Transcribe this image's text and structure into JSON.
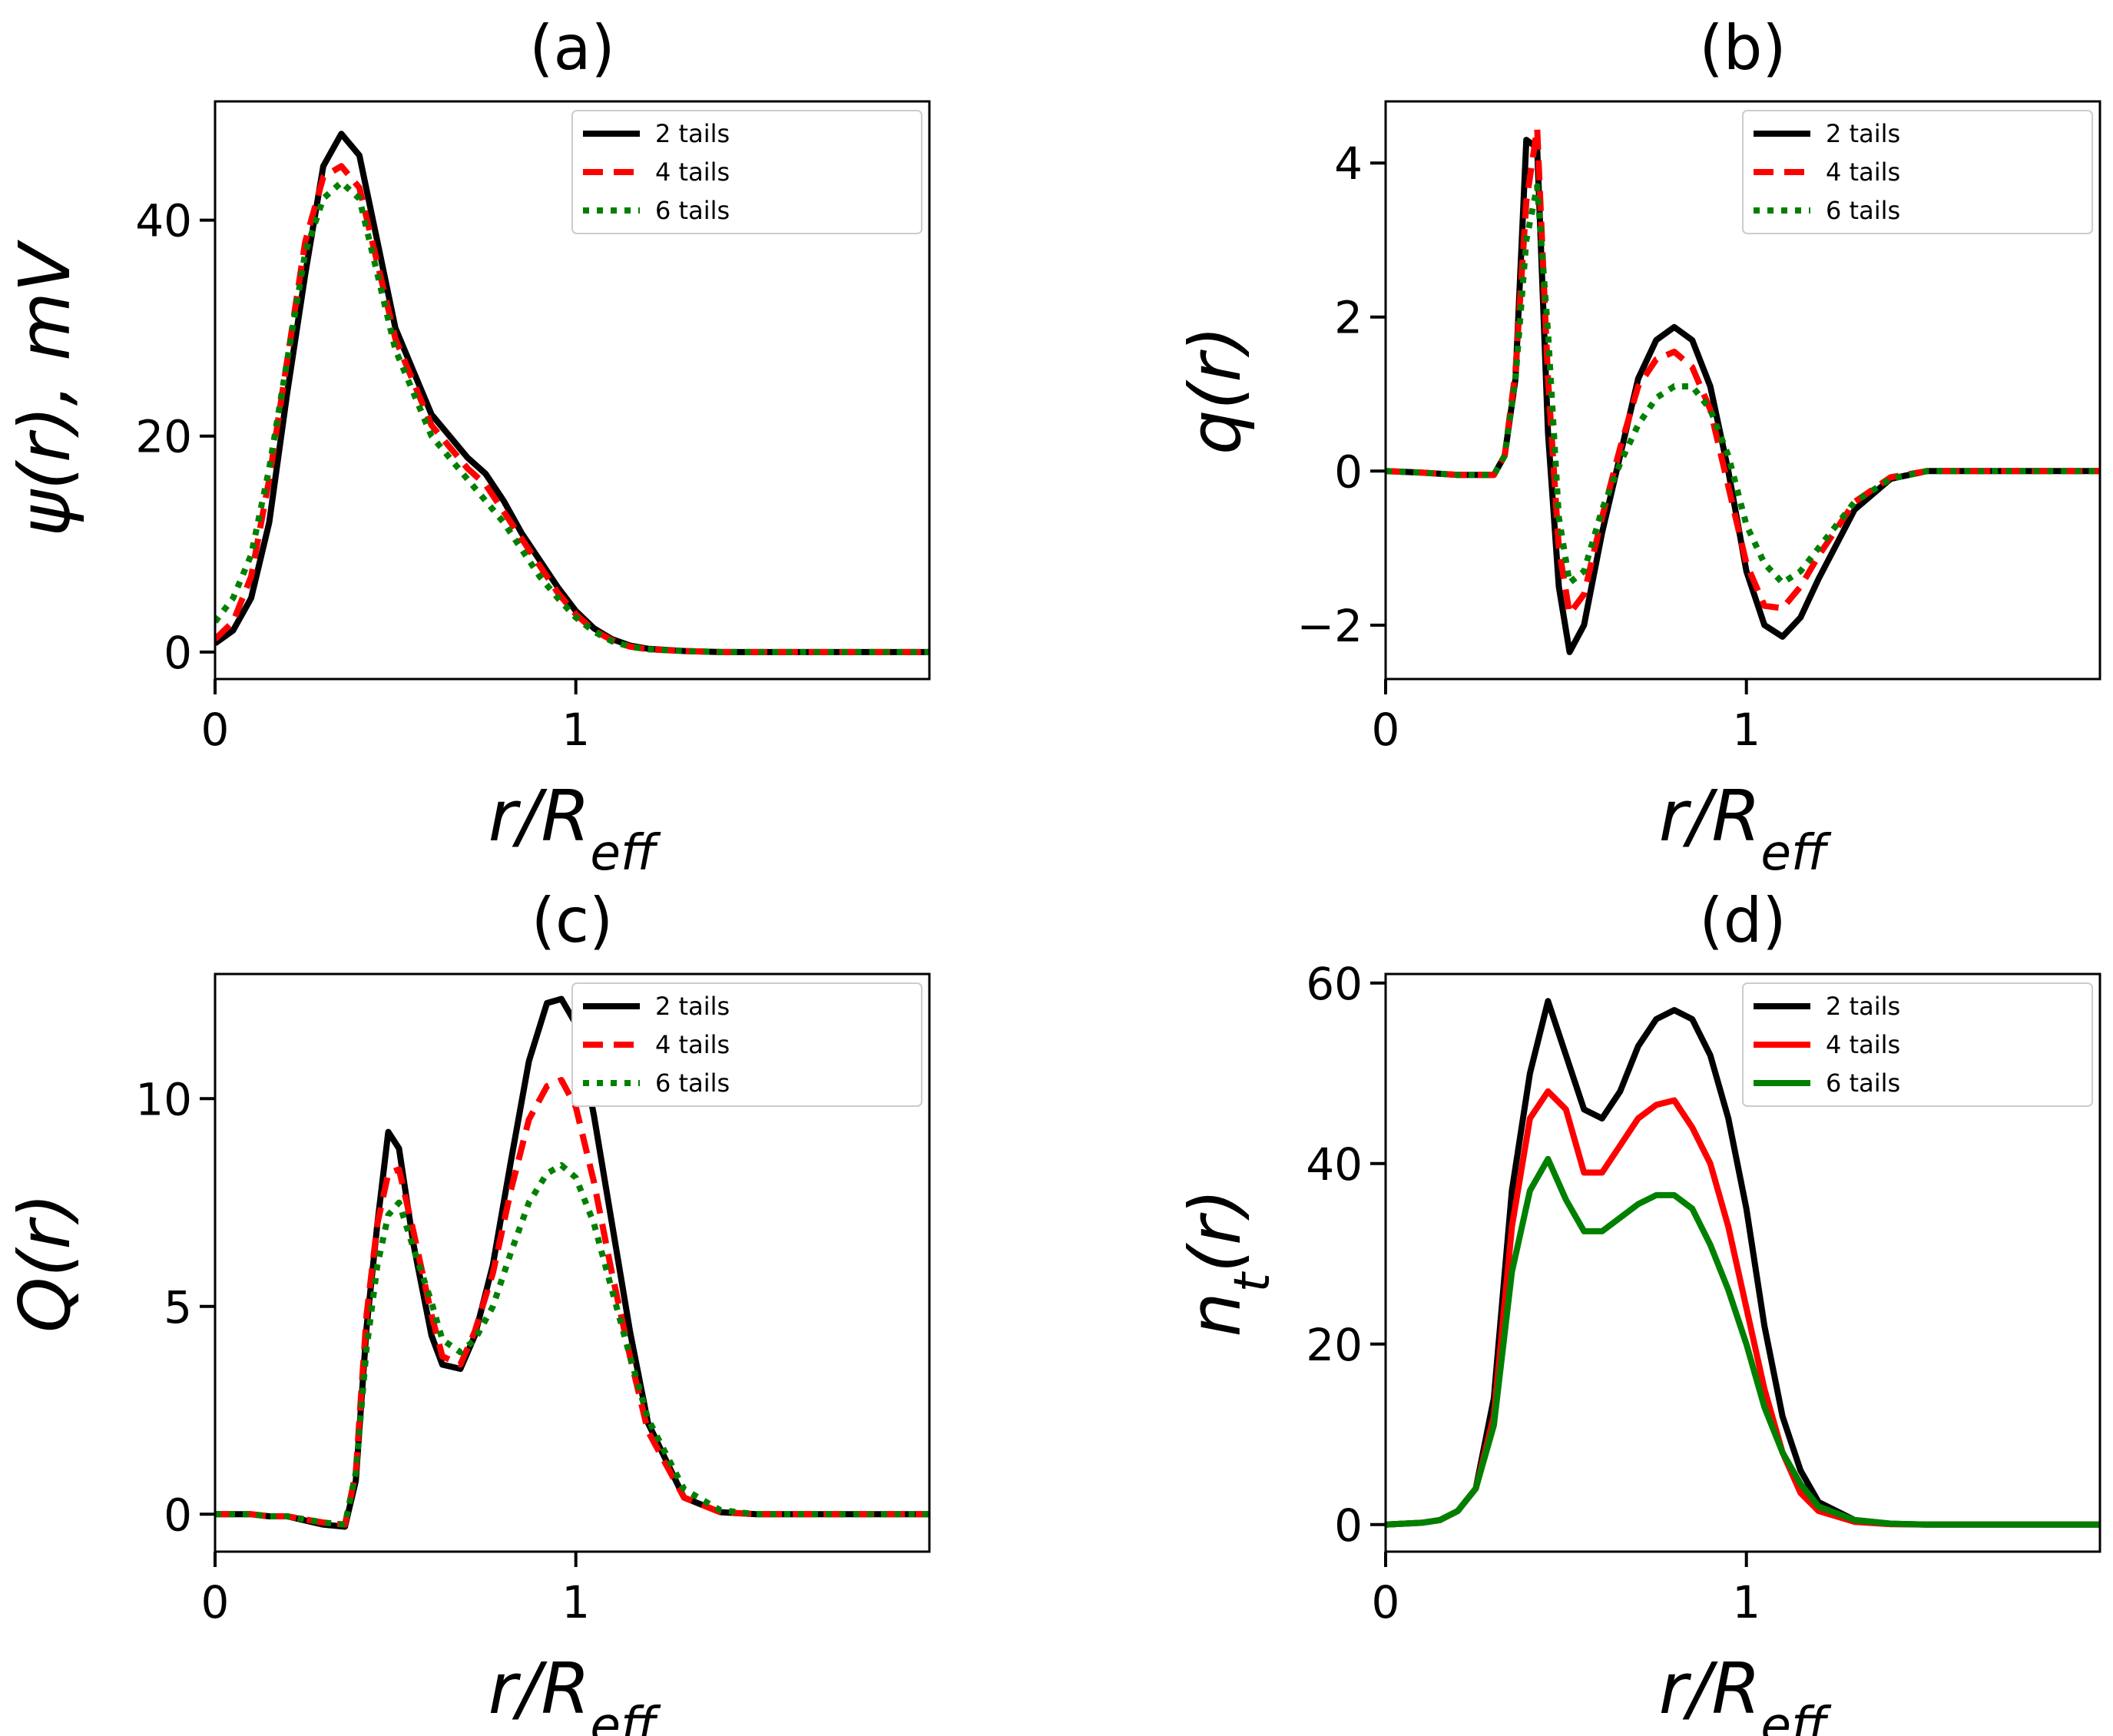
{
  "figure": {
    "panels": [
      "(a)",
      "(b)",
      "(c)",
      "(d)"
    ]
  },
  "chart_data": [
    {
      "type": "line",
      "title": "(a)",
      "xlabel": "r/R_eff",
      "ylabel": "ψ(r), mV",
      "xlim": [
        0,
        1.98
      ],
      "ylim": [
        -2.5,
        51
      ],
      "xticks": [
        0,
        1
      ],
      "yticks": [
        0,
        20,
        40
      ],
      "legend_position": "top-right",
      "series": [
        {
          "name": "2 tails",
          "color": "#000000",
          "dash": "solid",
          "x": [
            0,
            0.05,
            0.1,
            0.15,
            0.2,
            0.25,
            0.3,
            0.35,
            0.4,
            0.45,
            0.5,
            0.55,
            0.6,
            0.65,
            0.7,
            0.75,
            0.8,
            0.85,
            0.9,
            0.95,
            1.0,
            1.05,
            1.1,
            1.15,
            1.2,
            1.3,
            1.4,
            1.5,
            1.7,
            1.98
          ],
          "y": [
            0.8,
            2,
            5,
            12,
            24,
            35,
            45,
            48,
            46,
            38,
            30,
            26,
            22,
            20,
            18,
            16.5,
            14,
            11,
            8.5,
            6,
            3.8,
            2.2,
            1.2,
            0.6,
            0.3,
            0.1,
            0,
            0,
            0,
            0
          ]
        },
        {
          "name": "4 tails",
          "color": "#ff0000",
          "dash": "dashed",
          "x": [
            0,
            0.05,
            0.1,
            0.15,
            0.2,
            0.25,
            0.3,
            0.35,
            0.4,
            0.45,
            0.5,
            0.55,
            0.6,
            0.65,
            0.7,
            0.75,
            0.8,
            0.85,
            0.9,
            0.95,
            1.0,
            1.05,
            1.1,
            1.15,
            1.2,
            1.3,
            1.4,
            1.5,
            1.7,
            1.98
          ],
          "y": [
            1.2,
            2.8,
            7,
            16,
            27,
            38,
            44,
            45,
            43,
            36,
            29,
            25,
            21,
            19,
            17,
            15.5,
            13,
            10.5,
            8,
            5.5,
            3.5,
            2,
            1.1,
            0.5,
            0.25,
            0.1,
            0,
            0,
            0,
            0
          ]
        },
        {
          "name": "6 tails",
          "color": "#008000",
          "dash": "dotted",
          "x": [
            0,
            0.05,
            0.1,
            0.15,
            0.2,
            0.25,
            0.3,
            0.35,
            0.4,
            0.45,
            0.5,
            0.55,
            0.6,
            0.65,
            0.7,
            0.75,
            0.8,
            0.85,
            0.9,
            0.95,
            1.0,
            1.05,
            1.1,
            1.15,
            1.2,
            1.3,
            1.4,
            1.5,
            1.7,
            1.98
          ],
          "y": [
            2.8,
            5,
            9,
            17,
            27,
            37,
            42,
            43.5,
            42,
            35,
            28,
            24,
            20,
            18,
            16,
            14,
            12,
            9.5,
            7,
            5,
            3.2,
            1.9,
            1,
            0.5,
            0.25,
            0.1,
            0,
            0,
            0,
            0
          ]
        }
      ]
    },
    {
      "type": "line",
      "title": "(b)",
      "xlabel": "r/R_eff",
      "ylabel": "q(r)",
      "xlim": [
        0,
        1.98
      ],
      "ylim": [
        -2.7,
        4.8
      ],
      "xticks": [
        0,
        1
      ],
      "yticks": [
        -2,
        0,
        2,
        4
      ],
      "legend_position": "top-right",
      "series": [
        {
          "name": "2 tails",
          "color": "#000000",
          "dash": "solid",
          "x": [
            0,
            0.1,
            0.2,
            0.3,
            0.33,
            0.36,
            0.39,
            0.42,
            0.45,
            0.48,
            0.51,
            0.55,
            0.6,
            0.65,
            0.7,
            0.75,
            0.8,
            0.85,
            0.9,
            0.95,
            1.0,
            1.05,
            1.1,
            1.15,
            1.2,
            1.3,
            1.4,
            1.5,
            1.7,
            1.98
          ],
          "y": [
            0,
            -0.02,
            -0.05,
            -0.05,
            0.2,
            1.2,
            4.3,
            4.2,
            0.5,
            -1.5,
            -2.35,
            -2.0,
            -0.8,
            0.2,
            1.2,
            1.7,
            1.87,
            1.7,
            1.1,
            0,
            -1.3,
            -2.0,
            -2.15,
            -1.9,
            -1.4,
            -0.5,
            -0.1,
            0,
            0,
            0
          ]
        },
        {
          "name": "4 tails",
          "color": "#ff0000",
          "dash": "dashed",
          "x": [
            0,
            0.1,
            0.2,
            0.3,
            0.33,
            0.36,
            0.39,
            0.42,
            0.45,
            0.48,
            0.51,
            0.55,
            0.6,
            0.65,
            0.7,
            0.75,
            0.8,
            0.85,
            0.9,
            0.95,
            1.0,
            1.05,
            1.1,
            1.15,
            1.2,
            1.3,
            1.4,
            1.5,
            1.7,
            1.98
          ],
          "y": [
            0,
            -0.02,
            -0.05,
            -0.05,
            0.2,
            1.3,
            3.5,
            4.45,
            1.2,
            -1.0,
            -1.85,
            -1.6,
            -0.6,
            0.3,
            1.1,
            1.45,
            1.55,
            1.35,
            0.8,
            -0.2,
            -1.2,
            -1.75,
            -1.78,
            -1.5,
            -1.1,
            -0.4,
            -0.08,
            0,
            0,
            0
          ]
        },
        {
          "name": "6 tails",
          "color": "#008000",
          "dash": "dotted",
          "x": [
            0,
            0.1,
            0.2,
            0.3,
            0.33,
            0.36,
            0.39,
            0.42,
            0.45,
            0.48,
            0.51,
            0.55,
            0.6,
            0.65,
            0.7,
            0.75,
            0.8,
            0.85,
            0.9,
            0.95,
            1.0,
            1.05,
            1.1,
            1.15,
            1.2,
            1.3,
            1.4,
            1.5,
            1.7,
            1.98
          ],
          "y": [
            0,
            -0.02,
            -0.05,
            -0.05,
            0.2,
            1.2,
            3.0,
            3.7,
            1.8,
            -0.6,
            -1.45,
            -1.3,
            -0.5,
            0.1,
            0.6,
            0.95,
            1.1,
            1.1,
            0.8,
            0.2,
            -0.7,
            -1.2,
            -1.45,
            -1.3,
            -1.0,
            -0.4,
            -0.1,
            0,
            0,
            0
          ]
        }
      ]
    },
    {
      "type": "line",
      "title": "(c)",
      "xlabel": "r/R_eff",
      "ylabel": "Q(r)",
      "xlim": [
        0,
        1.98
      ],
      "ylim": [
        -0.9,
        13
      ],
      "xticks": [
        0,
        1
      ],
      "yticks": [
        0,
        5,
        10
      ],
      "legend_position": "top-right",
      "series": [
        {
          "name": "2 tails",
          "color": "#000000",
          "dash": "solid",
          "x": [
            0,
            0.1,
            0.15,
            0.2,
            0.3,
            0.36,
            0.39,
            0.42,
            0.45,
            0.48,
            0.51,
            0.55,
            0.6,
            0.63,
            0.68,
            0.72,
            0.77,
            0.82,
            0.87,
            0.92,
            0.96,
            1.0,
            1.05,
            1.1,
            1.15,
            1.2,
            1.3,
            1.4,
            1.5,
            1.7,
            1.98
          ],
          "y": [
            0,
            0,
            -0.05,
            -0.05,
            -0.25,
            -0.3,
            0.8,
            4.5,
            7.0,
            9.2,
            8.8,
            6.5,
            4.3,
            3.6,
            3.5,
            4.3,
            6.0,
            8.5,
            10.9,
            12.3,
            12.4,
            11.8,
            9.6,
            7.0,
            4.4,
            2.2,
            0.4,
            0.05,
            0,
            0,
            0
          ]
        },
        {
          "name": "4 tails",
          "color": "#ff0000",
          "dash": "dashed",
          "x": [
            0,
            0.1,
            0.15,
            0.2,
            0.3,
            0.36,
            0.39,
            0.42,
            0.45,
            0.48,
            0.51,
            0.55,
            0.6,
            0.63,
            0.68,
            0.72,
            0.77,
            0.82,
            0.87,
            0.92,
            0.96,
            1.0,
            1.05,
            1.1,
            1.15,
            1.2,
            1.3,
            1.4,
            1.5,
            1.7,
            1.98
          ],
          "y": [
            0,
            0,
            -0.05,
            -0.05,
            -0.2,
            -0.25,
            1.0,
            4.8,
            7.0,
            8.2,
            8.3,
            6.8,
            4.8,
            3.8,
            3.6,
            4.4,
            5.8,
            7.8,
            9.5,
            10.3,
            10.45,
            9.8,
            8.0,
            5.8,
            3.8,
            2.0,
            0.4,
            0.05,
            0,
            0,
            0
          ]
        },
        {
          "name": "6 tails",
          "color": "#008000",
          "dash": "dotted",
          "x": [
            0,
            0.1,
            0.15,
            0.2,
            0.3,
            0.36,
            0.39,
            0.42,
            0.45,
            0.48,
            0.51,
            0.55,
            0.6,
            0.63,
            0.68,
            0.72,
            0.77,
            0.82,
            0.87,
            0.92,
            0.96,
            1.0,
            1.05,
            1.1,
            1.15,
            1.2,
            1.3,
            1.4,
            1.5,
            1.7,
            1.98
          ],
          "y": [
            0,
            0,
            -0.05,
            -0.05,
            -0.2,
            -0.25,
            1.0,
            4.0,
            6.0,
            7.2,
            7.5,
            6.4,
            5.1,
            4.2,
            3.9,
            4.2,
            5.0,
            6.3,
            7.5,
            8.2,
            8.4,
            8.1,
            7.0,
            5.4,
            3.8,
            2.3,
            0.6,
            0.1,
            0,
            0,
            0
          ]
        }
      ]
    },
    {
      "type": "line",
      "title": "(d)",
      "xlabel": "r/R_eff",
      "ylabel": "n_t(r)",
      "xlim": [
        0,
        1.98
      ],
      "ylim": [
        -3,
        61
      ],
      "xticks": [
        0,
        1
      ],
      "yticks": [
        0,
        20,
        40,
        60
      ],
      "legend_position": "top-right",
      "series": [
        {
          "name": "2 tails",
          "color": "#000000",
          "dash": "solid",
          "x": [
            0,
            0.1,
            0.15,
            0.2,
            0.25,
            0.3,
            0.35,
            0.4,
            0.45,
            0.5,
            0.55,
            0.6,
            0.65,
            0.7,
            0.75,
            0.8,
            0.85,
            0.9,
            0.95,
            1.0,
            1.05,
            1.1,
            1.15,
            1.2,
            1.3,
            1.4,
            1.5,
            1.98
          ],
          "y": [
            0,
            0.2,
            0.5,
            1.5,
            4,
            14,
            37,
            50,
            58,
            52,
            46,
            45,
            48,
            53,
            56,
            57,
            56,
            52,
            45,
            35,
            22,
            12,
            6,
            2.5,
            0.5,
            0.1,
            0,
            0
          ]
        },
        {
          "name": "4 tails",
          "color": "#ff0000",
          "dash": "solid",
          "x": [
            0,
            0.1,
            0.15,
            0.2,
            0.25,
            0.3,
            0.35,
            0.4,
            0.45,
            0.5,
            0.55,
            0.6,
            0.65,
            0.7,
            0.75,
            0.8,
            0.85,
            0.9,
            0.95,
            1.0,
            1.05,
            1.1,
            1.15,
            1.2,
            1.3,
            1.4,
            1.5,
            1.98
          ],
          "y": [
            0,
            0.2,
            0.5,
            1.5,
            4,
            12,
            33,
            45,
            48,
            46,
            39,
            39,
            42,
            45,
            46.5,
            47,
            44,
            40,
            33,
            24,
            15,
            8,
            3.5,
            1.5,
            0.3,
            0.05,
            0,
            0
          ]
        },
        {
          "name": "6 tails",
          "color": "#008000",
          "dash": "solid",
          "x": [
            0,
            0.1,
            0.15,
            0.2,
            0.25,
            0.3,
            0.35,
            0.4,
            0.45,
            0.5,
            0.55,
            0.6,
            0.65,
            0.7,
            0.75,
            0.8,
            0.85,
            0.9,
            0.95,
            1.0,
            1.05,
            1.1,
            1.15,
            1.2,
            1.3,
            1.4,
            1.5,
            1.98
          ],
          "y": [
            0,
            0.2,
            0.5,
            1.5,
            4,
            11,
            28,
            37,
            40.5,
            36,
            32.5,
            32.5,
            34,
            35.5,
            36.5,
            36.5,
            35,
            31,
            26,
            20,
            13,
            8,
            4.5,
            2,
            0.5,
            0.1,
            0,
            0
          ]
        }
      ]
    }
  ]
}
